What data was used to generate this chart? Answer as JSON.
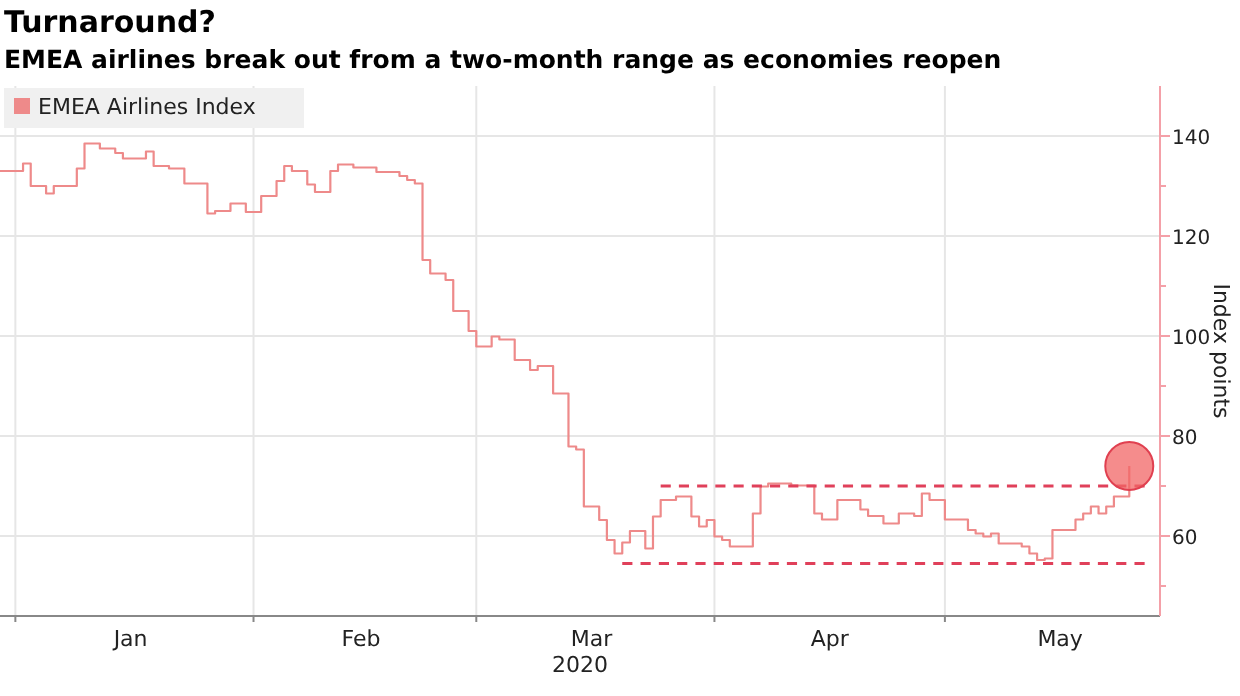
{
  "chart_data": {
    "type": "step",
    "title": "Turnaround?",
    "subtitle": "EMEA airlines break out from a two-month range as economies reopen",
    "xlabel": "2020",
    "ylabel": "Index points",
    "xlim": [
      "2019-12-30",
      "2020-05-29"
    ],
    "xticks": [
      {
        "value": "2020-01-01",
        "label": null
      },
      {
        "value": "2020-01-16",
        "label": "Jan"
      },
      {
        "value": "2020-02-01",
        "label": null
      },
      {
        "value": "2020-02-15",
        "label": "Feb"
      },
      {
        "value": "2020-03-01",
        "label": null
      },
      {
        "value": "2020-03-16",
        "label": "Mar"
      },
      {
        "value": "2020-04-01",
        "label": null
      },
      {
        "value": "2020-04-16",
        "label": "Apr"
      },
      {
        "value": "2020-05-01",
        "label": null
      },
      {
        "value": "2020-05-16",
        "label": "May"
      }
    ],
    "ylim": [
      44,
      150
    ],
    "yticks": [
      {
        "value": 50,
        "label": null
      },
      60,
      {
        "value": 70,
        "label": null
      },
      80,
      {
        "value": 90,
        "label": null
      },
      100,
      {
        "value": 110,
        "label": null
      },
      120,
      {
        "value": 130,
        "label": null
      },
      140
    ],
    "grid": true,
    "legend": "top left",
    "marker": "none",
    "series": [
      {
        "name": "EMEA Airlines Index",
        "color": "#ee8a8a",
        "x": [
          "2019-12-30",
          "2020-01-02",
          "2020-01-03",
          "2020-01-05",
          "2020-01-06",
          "2020-01-09",
          "2020-01-10",
          "2020-01-12",
          "2020-01-14",
          "2020-01-15",
          "2020-01-18",
          "2020-01-19",
          "2020-01-21",
          "2020-01-23",
          "2020-01-26",
          "2020-01-27",
          "2020-01-29",
          "2020-01-31",
          "2020-02-02",
          "2020-02-04",
          "2020-02-05",
          "2020-02-06",
          "2020-02-08",
          "2020-02-09",
          "2020-02-11",
          "2020-02-12",
          "2020-02-14",
          "2020-02-17",
          "2020-02-20",
          "2020-02-21",
          "2020-02-22",
          "2020-02-23",
          "2020-02-24",
          "2020-02-26",
          "2020-02-27",
          "2020-02-29",
          "2020-03-01",
          "2020-03-03",
          "2020-03-04",
          "2020-03-06",
          "2020-03-08",
          "2020-03-09",
          "2020-03-10",
          "2020-03-11",
          "2020-03-13",
          "2020-03-14",
          "2020-03-15",
          "2020-03-17",
          "2020-03-18",
          "2020-03-19",
          "2020-03-20",
          "2020-03-21",
          "2020-03-23",
          "2020-03-24",
          "2020-03-25",
          "2020-03-27",
          "2020-03-29",
          "2020-03-30",
          "2020-03-31",
          "2020-04-01",
          "2020-04-02",
          "2020-04-03",
          "2020-04-06",
          "2020-04-07",
          "2020-04-08",
          "2020-04-11",
          "2020-04-14",
          "2020-04-15",
          "2020-04-17",
          "2020-04-20",
          "2020-04-21",
          "2020-04-23",
          "2020-04-25",
          "2020-04-27",
          "2020-04-28",
          "2020-04-29",
          "2020-05-01",
          "2020-05-04",
          "2020-05-05",
          "2020-05-06",
          "2020-05-07",
          "2020-05-08",
          "2020-05-11",
          "2020-05-12",
          "2020-05-13",
          "2020-05-14",
          "2020-05-15",
          "2020-05-18",
          "2020-05-19",
          "2020-05-20",
          "2020-05-21",
          "2020-05-22",
          "2020-05-23",
          "2020-05-25"
        ],
        "values": [
          133,
          134.5,
          130,
          128.5,
          130,
          133.5,
          138.5,
          137.5,
          136.6,
          135.5,
          136.9,
          134,
          133.5,
          130.5,
          124.5,
          125,
          126.5,
          124.8,
          128,
          131,
          134,
          133,
          130.3,
          128.8,
          133,
          134.3,
          133.7,
          132.8,
          132,
          131.2,
          130.5,
          115.2,
          112.5,
          111.2,
          105,
          101,
          97.9,
          99.9,
          99.3,
          95.2,
          93.2,
          94,
          94,
          88.5,
          77.9,
          77.3,
          65.9,
          63.2,
          59.2,
          56.5,
          58.7,
          61,
          57.5,
          63.9,
          67.2,
          67.9,
          63.9,
          61.9,
          63.2,
          59.9,
          59.2,
          57.9,
          64.5,
          69.9,
          70.5,
          70.1,
          64.5,
          63.3,
          67.2,
          65.3,
          64,
          62.5,
          64.5,
          64,
          68.5,
          67.2,
          63.3,
          61.2,
          60.5,
          59.9,
          60.5,
          58.5,
          57.9,
          56.5,
          55.2,
          55.5,
          61.2,
          63.3,
          64.5,
          65.9,
          64.5,
          65.9,
          67.9,
          74
        ]
      },
      {
        "type": "line",
        "color": "#e0405a",
        "line_style": "dashed",
        "x": [
          "2020-03-25",
          "2020-05-27"
        ],
        "values": [
          70,
          70
        ]
      },
      {
        "type": "line",
        "color": "#e0405a",
        "line_style": "dashed",
        "x": [
          "2020-03-20",
          "2020-05-27"
        ],
        "values": [
          54.5,
          54.5
        ]
      }
    ]
  }
}
